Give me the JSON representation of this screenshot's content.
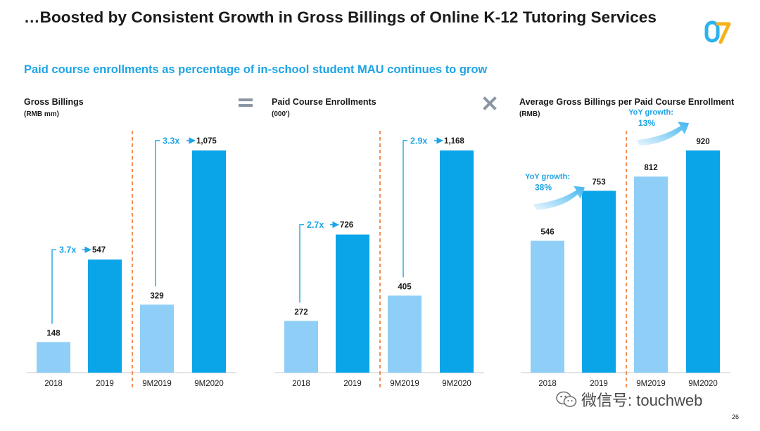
{
  "title": "…Boosted by Consistent Growth in Gross Billings of Online K-12 Tutoring Services",
  "subtitle": "Paid course enrollments as percentage of in-school student MAU continues to grow",
  "operators": {
    "equals": "=",
    "times": "×"
  },
  "page_number": "26",
  "watermark": "微信号: touchweb",
  "colors": {
    "light_bar": "#8fcff7",
    "dark_bar": "#0aa5e8",
    "accent": "#1da4e6",
    "divider": "#f0752f",
    "text": "#1a1a1a"
  },
  "chart_data": [
    {
      "type": "bar",
      "title": "Gross Billings",
      "unit": "(RMB mm)",
      "categories": [
        "2018",
        "2019",
        "9M2019",
        "9M2020"
      ],
      "values": [
        148,
        547,
        329,
        1075
      ],
      "data_labels": [
        "148",
        "547",
        "329",
        "1,075"
      ],
      "bar_colors": [
        "light",
        "dark",
        "light",
        "dark"
      ],
      "ylim": [
        0,
        1075
      ],
      "divider_after_index": 1,
      "annotations": [
        {
          "type": "growth_bracket",
          "from_index": 0,
          "to_index": 1,
          "text": "3.7x"
        },
        {
          "type": "growth_bracket",
          "from_index": 2,
          "to_index": 3,
          "text": "3.3x"
        }
      ]
    },
    {
      "type": "bar",
      "title": "Paid Course Enrollments",
      "unit": "(000')",
      "categories": [
        "2018",
        "2019",
        "9M2019",
        "9M2020"
      ],
      "values": [
        272,
        726,
        405,
        1168
      ],
      "data_labels": [
        "272",
        "726",
        "405",
        "1,168"
      ],
      "bar_colors": [
        "light",
        "dark",
        "light",
        "dark"
      ],
      "ylim": [
        0,
        1168
      ],
      "divider_after_index": 1,
      "annotations": [
        {
          "type": "growth_bracket",
          "from_index": 0,
          "to_index": 1,
          "text": "2.7x"
        },
        {
          "type": "growth_bracket",
          "from_index": 2,
          "to_index": 3,
          "text": "2.9x"
        }
      ]
    },
    {
      "type": "bar",
      "title": "Average Gross Billings per Paid Course Enrollment",
      "unit": "(RMB)",
      "categories": [
        "2018",
        "2019",
        "9M2019",
        "9M2020"
      ],
      "values": [
        546,
        753,
        812,
        920
      ],
      "data_labels": [
        "546",
        "753",
        "812",
        "920"
      ],
      "bar_colors": [
        "light",
        "dark",
        "light",
        "dark"
      ],
      "ylim": [
        0,
        920
      ],
      "divider_after_index": 1,
      "annotations": [
        {
          "type": "yoy_arrow",
          "from_index": 0,
          "to_index": 1,
          "text": "YoY growth:",
          "value": "38%"
        },
        {
          "type": "yoy_arrow",
          "from_index": 2,
          "to_index": 3,
          "text": "YoY growth:",
          "value": "13%"
        }
      ]
    }
  ]
}
